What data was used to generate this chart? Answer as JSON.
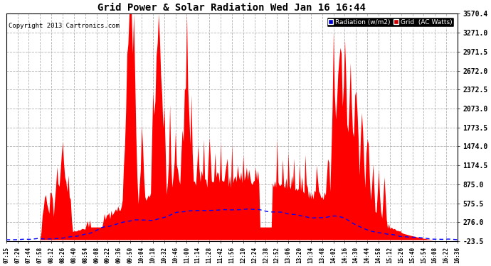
{
  "title": "Grid Power & Solar Radiation Wed Jan 16 16:44",
  "copyright": "Copyright 2013 Cartronics.com",
  "bg_color": "#ffffff",
  "plot_bg_color": "#ffffff",
  "grid_color": "#aaaaaa",
  "yticks": [
    -23.5,
    276.0,
    575.5,
    875.0,
    1174.5,
    1474.0,
    1773.5,
    2073.0,
    2372.5,
    2672.0,
    2971.5,
    3271.0,
    3570.4
  ],
  "ymin": -23.5,
  "ymax": 3570.4,
  "xtick_labels": [
    "07:15",
    "07:29",
    "07:44",
    "07:58",
    "08:12",
    "08:26",
    "08:40",
    "08:54",
    "09:08",
    "09:22",
    "09:36",
    "09:50",
    "10:04",
    "10:18",
    "10:32",
    "10:46",
    "11:00",
    "11:14",
    "11:28",
    "11:42",
    "11:56",
    "12:10",
    "12:24",
    "12:38",
    "12:52",
    "13:06",
    "13:20",
    "13:34",
    "13:48",
    "14:02",
    "14:16",
    "14:30",
    "14:44",
    "14:58",
    "15:12",
    "15:26",
    "15:40",
    "15:54",
    "16:08",
    "16:22",
    "16:36"
  ],
  "radiation_color": "#0000ff",
  "grid_fill_color": "#ff0000",
  "legend_bg": "#000000",
  "legend_rad_bg": "#0000cc",
  "legend_grid_bg": "#cc0000"
}
